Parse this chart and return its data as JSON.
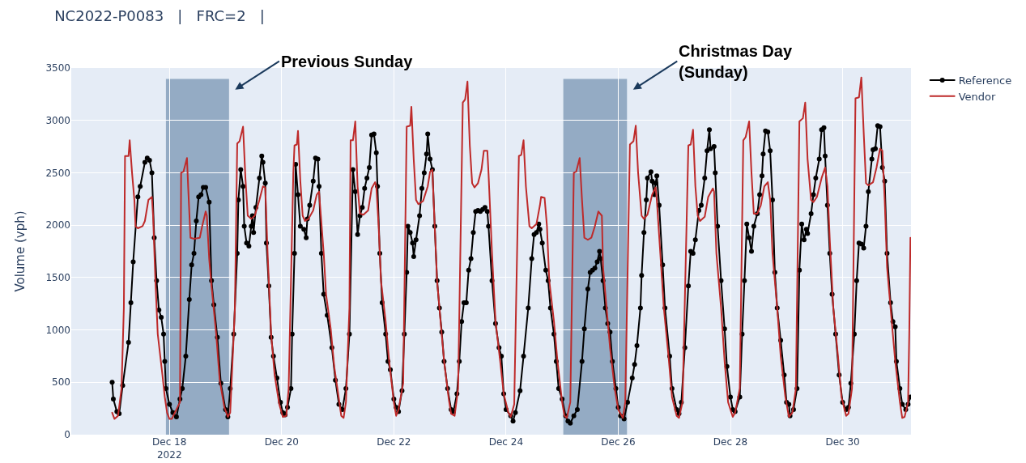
{
  "chart_data": {
    "type": "line",
    "title": "NC2022-P0083   |   FRC=2   |",
    "ylabel": "Volume (vph)",
    "xlim": [
      "2022-12-16T06:00",
      "2022-12-31T05:15"
    ],
    "xticks": [
      {
        "value": "2022-12-18",
        "label": "Dec 18\n2022"
      },
      {
        "value": "2022-12-20",
        "label": "Dec 20"
      },
      {
        "value": "2022-12-22",
        "label": "Dec 22"
      },
      {
        "value": "2022-12-24",
        "label": "Dec 24"
      },
      {
        "value": "2022-12-26",
        "label": "Dec 26"
      },
      {
        "value": "2022-12-28",
        "label": "Dec 28"
      },
      {
        "value": "2022-12-30",
        "label": "Dec 30"
      }
    ],
    "ylim": [
      0,
      3500
    ],
    "yticks": [
      0,
      500,
      1000,
      1500,
      2000,
      2500,
      3000,
      3500
    ],
    "grid": true,
    "legend": "top right",
    "bands": [
      {
        "axis": "x",
        "from": "2022-12-17T22:30",
        "to": "2022-12-19T01:30",
        "color": "#94abc4",
        "label": "Previous Sunday"
      },
      {
        "axis": "x",
        "from": "2022-12-25T00:30",
        "to": "2022-12-26T03:45",
        "color": "#94abc4",
        "label": "Christmas Day\n(Sunday)"
      }
    ],
    "series": [
      {
        "name": "Reference",
        "color": "#000000",
        "marker": "circle",
        "x": [
          "2022-12-16T23:30",
          "2022-12-17T00:00",
          "2022-12-17T01:30",
          "2022-12-17T02:30",
          "2022-12-17T04:00",
          "2022-12-17T06:30",
          "2022-12-17T07:30",
          "2022-12-17T08:30",
          "2022-12-17T10:30",
          "2022-12-17T11:30",
          "2022-12-17T13:30",
          "2022-12-17T14:30",
          "2022-12-17T15:30",
          "2022-12-17T16:30",
          "2022-12-17T17:30",
          "2022-12-17T18:30",
          "2022-12-17T19:30",
          "2022-12-17T20:30",
          "2022-12-17T21:30",
          "2022-12-17T22:00",
          "2022-12-17T22:30",
          "2022-12-18T00:00",
          "2022-12-18T01:30",
          "2022-12-18T03:00",
          "2022-12-18T04:30",
          "2022-12-18T05:30",
          "2022-12-18T07:00",
          "2022-12-18T08:30",
          "2022-12-18T09:30",
          "2022-12-18T10:30",
          "2022-12-18T11:30",
          "2022-12-18T12:30",
          "2022-12-18T13:30",
          "2022-12-18T14:30",
          "2022-12-18T15:30",
          "2022-12-18T17:00",
          "2022-12-18T18:00",
          "2022-12-18T19:00",
          "2022-12-18T20:30",
          "2022-12-18T22:00",
          "2022-12-19T00:00",
          "2022-12-19T01:00",
          "2022-12-19T02:00",
          "2022-12-19T03:30",
          "2022-12-19T05:00",
          "2022-12-19T05:30",
          "2022-12-19T06:30",
          "2022-12-19T07:30",
          "2022-12-19T08:00",
          "2022-12-19T09:00",
          "2022-12-19T10:00",
          "2022-12-19T11:00",
          "2022-12-19T11:30",
          "2022-12-19T12:00",
          "2022-12-19T13:00",
          "2022-12-19T14:30",
          "2022-12-19T15:30",
          "2022-12-19T16:00",
          "2022-12-19T17:00",
          "2022-12-19T17:30",
          "2022-12-19T18:30",
          "2022-12-19T19:30",
          "2022-12-19T20:30",
          "2022-12-19T22:00",
          "2022-12-19T23:30",
          "2022-12-20T00:30",
          "2022-12-20T01:30",
          "2022-12-20T02:30",
          "2022-12-20T04:00",
          "2022-12-20T04:30",
          "2022-12-20T05:30",
          "2022-12-20T06:00",
          "2022-12-20T07:00",
          "2022-12-20T08:00",
          "2022-12-20T09:30",
          "2022-12-20T10:30",
          "2022-12-20T11:00",
          "2022-12-20T12:00",
          "2022-12-20T13:30",
          "2022-12-20T14:30",
          "2022-12-20T15:30",
          "2022-12-20T16:00",
          "2022-12-20T17:00",
          "2022-12-20T18:00",
          "2022-12-20T19:30",
          "2022-12-20T21:30",
          "2022-12-20T23:00",
          "2022-12-21T00:30",
          "2022-12-21T02:00",
          "2022-12-21T03:30",
          "2022-12-21T05:00",
          "2022-12-21T06:30",
          "2022-12-21T07:30",
          "2022-12-21T08:30",
          "2022-12-21T09:30",
          "2022-12-21T10:30",
          "2022-12-21T11:30",
          "2022-12-21T12:30",
          "2022-12-21T13:30",
          "2022-12-21T14:30",
          "2022-12-21T15:30",
          "2022-12-21T16:30",
          "2022-12-21T17:00",
          "2022-12-21T18:00",
          "2022-12-21T19:00",
          "2022-12-21T20:30",
          "2022-12-21T21:30",
          "2022-12-21T22:30",
          "2022-12-22T00:00",
          "2022-12-22T01:00",
          "2022-12-22T02:00",
          "2022-12-22T03:30",
          "2022-12-22T04:30",
          "2022-12-22T05:30",
          "2022-12-22T06:00",
          "2022-12-22T07:00",
          "2022-12-22T08:00",
          "2022-12-22T08:30",
          "2022-12-22T09:30",
          "2022-12-22T11:00",
          "2022-12-22T12:00",
          "2022-12-22T13:00",
          "2022-12-22T14:00",
          "2022-12-22T14:30",
          "2022-12-22T15:30",
          "2022-12-22T16:30",
          "2022-12-22T17:30",
          "2022-12-22T18:30",
          "2022-12-22T19:30",
          "2022-12-22T20:30",
          "2022-12-22T21:30",
          "2022-12-22T23:00",
          "2022-12-23T00:30",
          "2022-12-23T01:30",
          "2022-12-23T03:00",
          "2022-12-23T04:00",
          "2022-12-23T05:00",
          "2022-12-23T06:00",
          "2022-12-23T07:00",
          "2022-12-23T08:00",
          "2022-12-23T09:00",
          "2022-12-23T10:00",
          "2022-12-23T11:00",
          "2022-12-23T12:00",
          "2022-12-23T13:00",
          "2022-12-23T14:00",
          "2022-12-23T15:00",
          "2022-12-23T16:00",
          "2022-12-23T16:30",
          "2022-12-23T18:00",
          "2022-12-23T19:30",
          "2022-12-23T21:00",
          "2022-12-23T22:00",
          "2022-12-23T23:00",
          "2022-12-24T00:00",
          "2022-12-24T02:00",
          "2022-12-24T03:00",
          "2022-12-24T04:00",
          "2022-12-24T06:00",
          "2022-12-24T07:30",
          "2022-12-24T09:30",
          "2022-12-24T11:00",
          "2022-12-24T12:00",
          "2022-12-24T13:00",
          "2022-12-24T14:00",
          "2022-12-24T14:30",
          "2022-12-24T15:30",
          "2022-12-24T17:00",
          "2022-12-24T18:00",
          "2022-12-24T19:00",
          "2022-12-24T20:30",
          "2022-12-24T21:30",
          "2022-12-24T22:30",
          "2022-12-25T00:00",
          "2022-12-25T01:30",
          "2022-12-25T02:30",
          "2022-12-25T03:30",
          "2022-12-25T05:00",
          "2022-12-25T06:30",
          "2022-12-25T08:30",
          "2022-12-25T09:30",
          "2022-12-25T11:00",
          "2022-12-25T12:00",
          "2022-12-25T13:00",
          "2022-12-25T14:00",
          "2022-12-25T15:00",
          "2022-12-25T16:00",
          "2022-12-25T16:30",
          "2022-12-25T17:30",
          "2022-12-25T18:30",
          "2022-12-25T19:30",
          "2022-12-25T20:30",
          "2022-12-25T21:30",
          "2022-12-25T23:00",
          "2022-12-26T00:00",
          "2022-12-26T01:00",
          "2022-12-26T02:30",
          "2022-12-26T04:00",
          "2022-12-26T06:00",
          "2022-12-26T07:00",
          "2022-12-26T08:00",
          "2022-12-26T09:30",
          "2022-12-26T10:00",
          "2022-12-26T11:00",
          "2022-12-26T12:00",
          "2022-12-26T12:30",
          "2022-12-26T14:00",
          "2022-12-26T14:30",
          "2022-12-26T15:30",
          "2022-12-26T16:00",
          "2022-12-26T16:30",
          "2022-12-26T17:30",
          "2022-12-26T19:00",
          "2022-12-26T20:00",
          "2022-12-26T22:00",
          "2022-12-26T23:00",
          "2022-12-27T01:00",
          "2022-12-27T02:00",
          "2022-12-27T03:00",
          "2022-12-27T04:30",
          "2022-12-27T06:00",
          "2022-12-27T07:00",
          "2022-12-27T08:00",
          "2022-12-27T09:00",
          "2022-12-27T10:30",
          "2022-12-27T11:30",
          "2022-12-27T13:00",
          "2022-12-27T14:00",
          "2022-12-27T15:00",
          "2022-12-27T15:30",
          "2022-12-27T17:00",
          "2022-12-27T17:30",
          "2022-12-27T18:30",
          "2022-12-27T20:00",
          "2022-12-27T21:30",
          "2022-12-27T22:30",
          "2022-12-28T00:00",
          "2022-12-28T01:00",
          "2022-12-28T02:00",
          "2022-12-28T04:00",
          "2022-12-28T05:00",
          "2022-12-28T06:00",
          "2022-12-28T07:00",
          "2022-12-28T08:00",
          "2022-12-28T09:00",
          "2022-12-28T10:00",
          "2022-12-28T11:30",
          "2022-12-28T12:30",
          "2022-12-28T13:30",
          "2022-12-28T14:00",
          "2022-12-28T15:00",
          "2022-12-28T16:00",
          "2022-12-28T17:00",
          "2022-12-28T18:00",
          "2022-12-28T19:00",
          "2022-12-28T20:00",
          "2022-12-28T21:30",
          "2022-12-28T23:00",
          "2022-12-29T00:00",
          "2022-12-29T01:00",
          "2022-12-29T01:30",
          "2022-12-29T03:00",
          "2022-12-29T04:30",
          "2022-12-29T05:30",
          "2022-12-29T06:30",
          "2022-12-29T07:30",
          "2022-12-29T08:30",
          "2022-12-29T09:00",
          "2022-12-29T10:30",
          "2022-12-29T11:30",
          "2022-12-29T12:30",
          "2022-12-29T14:00",
          "2022-12-29T15:00",
          "2022-12-29T16:00",
          "2022-12-29T16:30",
          "2022-12-29T17:30",
          "2022-12-29T18:30",
          "2022-12-29T19:30",
          "2022-12-29T21:00",
          "2022-12-29T22:30",
          "2022-12-30T00:00",
          "2022-12-30T01:30",
          "2022-12-30T02:30",
          "2022-12-30T03:30",
          "2022-12-30T05:00",
          "2022-12-30T06:00",
          "2022-12-30T07:00",
          "2022-12-30T08:00",
          "2022-12-30T09:00",
          "2022-12-30T10:00",
          "2022-12-30T11:00",
          "2022-12-30T12:30",
          "2022-12-30T13:00",
          "2022-12-30T14:00",
          "2022-12-30T15:00",
          "2022-12-30T16:00",
          "2022-12-30T17:00",
          "2022-12-30T18:00",
          "2022-12-30T19:00",
          "2022-12-30T20:30",
          "2022-12-30T21:30",
          "2022-12-30T22:30",
          "2022-12-30T23:00",
          "2022-12-31T00:30",
          "2022-12-31T01:30",
          "2022-12-31T03:00",
          "2022-12-31T04:00",
          "2022-12-31T05:00"
        ],
        "values": [
          500,
          340,
          220,
          200,
          470,
          880,
          1260,
          1650,
          2270,
          2370,
          2600,
          2640,
          2620,
          2500,
          1880,
          1470,
          1190,
          1120,
          960,
          700,
          440,
          290,
          210,
          170,
          340,
          440,
          750,
          1290,
          1620,
          1730,
          2040,
          2270,
          2290,
          2360,
          2360,
          2220,
          1470,
          1240,
          930,
          490,
          240,
          170,
          440,
          960,
          1730,
          2240,
          2530,
          2370,
          1990,
          1830,
          1800,
          1990,
          2090,
          1930,
          2170,
          2450,
          2660,
          2600,
          2400,
          1830,
          1420,
          930,
          750,
          540,
          310,
          210,
          190,
          260,
          440,
          960,
          1730,
          2580,
          2290,
          1990,
          1960,
          1880,
          2060,
          2190,
          2420,
          2640,
          2630,
          2370,
          1730,
          1340,
          1140,
          830,
          520,
          290,
          240,
          440,
          960,
          2530,
          2320,
          1910,
          2090,
          2170,
          2350,
          2450,
          2550,
          2860,
          2870,
          2690,
          2370,
          1730,
          1260,
          960,
          700,
          620,
          340,
          260,
          220,
          420,
          960,
          1550,
          1990,
          1930,
          1830,
          1700,
          1860,
          2090,
          2350,
          2500,
          2680,
          2870,
          2630,
          2530,
          1990,
          1470,
          1210,
          980,
          700,
          440,
          240,
          220,
          390,
          700,
          1080,
          1260,
          1260,
          1570,
          1680,
          1930,
          2130,
          2140,
          2130,
          2150,
          2170,
          2130,
          1990,
          1470,
          1060,
          830,
          750,
          390,
          240,
          180,
          130,
          210,
          420,
          750,
          1210,
          1680,
          1910,
          1930,
          2010,
          1960,
          1830,
          1570,
          1470,
          1210,
          960,
          700,
          440,
          340,
          180,
          130,
          110,
          180,
          240,
          700,
          1010,
          1390,
          1550,
          1570,
          1590,
          1650,
          1750,
          1680,
          1470,
          1210,
          1060,
          980,
          700,
          440,
          260,
          180,
          150,
          310,
          540,
          670,
          850,
          1210,
          1520,
          1930,
          2240,
          2450,
          2510,
          2420,
          2290,
          2400,
          2470,
          2190,
          1620,
          1210,
          750,
          440,
          240,
          200,
          310,
          830,
          1420,
          1750,
          1730,
          1860,
          2140,
          2190,
          2450,
          2710,
          2910,
          2730,
          2750,
          2500,
          1990,
          1470,
          1010,
          650,
          360,
          240,
          220,
          360,
          960,
          1470,
          2010,
          1880,
          1750,
          1990,
          2110,
          2290,
          2470,
          2680,
          2900,
          2890,
          2710,
          2240,
          1550,
          1210,
          900,
          570,
          310,
          290,
          180,
          240,
          440,
          1570,
          2010,
          1860,
          1960,
          1920,
          2110,
          2290,
          2450,
          2630,
          2910,
          2930,
          2660,
          2190,
          1730,
          1340,
          960,
          570,
          310,
          240,
          260,
          490,
          960,
          1470,
          1830,
          1820,
          1780,
          1990,
          2320,
          2630,
          2720,
          2730,
          2950,
          2940,
          2550,
          2420,
          1730,
          1260,
          1080,
          1030,
          700,
          440,
          290,
          240,
          290,
          360
        ]
      },
      {
        "name": "Vendor",
        "color": "#be2a2a",
        "x": [
          "2022-12-16T23:30",
          "2022-12-17T00:30",
          "2022-12-17T02:00",
          "2022-12-17T03:30",
          "2022-12-17T04:30",
          "2022-12-17T05:00",
          "2022-12-17T06:30",
          "2022-12-17T07:00",
          "2022-12-17T08:00",
          "2022-12-17T09:00",
          "2022-12-17T09:30",
          "2022-12-17T10:30",
          "2022-12-17T12:30",
          "2022-12-17T13:30",
          "2022-12-17T15:00",
          "2022-12-17T16:30",
          "2022-12-17T17:00",
          "2022-12-17T18:00",
          "2022-12-17T19:00",
          "2022-12-17T21:00",
          "2022-12-17T22:00",
          "2022-12-17T23:00",
          "2022-12-18T00:00",
          "2022-12-18T01:00",
          "2022-12-18T04:30",
          "2022-12-18T05:00",
          "2022-12-18T06:00",
          "2022-12-18T07:30",
          "2022-12-18T08:00",
          "2022-12-18T09:00",
          "2022-12-18T10:30",
          "2022-12-18T13:00",
          "2022-12-18T14:00",
          "2022-12-18T15:30",
          "2022-12-18T16:00",
          "2022-12-18T17:00",
          "2022-12-18T18:00",
          "2022-12-18T20:00",
          "2022-12-18T21:30",
          "2022-12-18T23:30",
          "2022-12-19T01:00",
          "2022-12-19T02:00",
          "2022-12-19T04:00",
          "2022-12-19T05:00",
          "2022-12-19T06:00",
          "2022-12-19T07:30",
          "2022-12-19T08:30",
          "2022-12-19T09:30",
          "2022-12-19T11:00",
          "2022-12-19T12:30",
          "2022-12-19T14:30",
          "2022-12-19T16:00",
          "2022-12-19T17:00",
          "2022-12-19T18:00",
          "2022-12-19T19:30",
          "2022-12-19T21:00",
          "2022-12-19T23:00",
          "2022-12-20T00:30",
          "2022-12-20T02:00",
          "2022-12-20T03:00",
          "2022-12-20T04:00",
          "2022-12-20T05:00",
          "2022-12-20T05:30",
          "2022-12-20T06:30",
          "2022-12-20T07:00",
          "2022-12-20T08:00",
          "2022-12-20T09:00",
          "2022-12-20T10:00",
          "2022-12-20T11:30",
          "2022-12-20T13:30",
          "2022-12-20T15:00",
          "2022-12-20T16:00",
          "2022-12-20T18:00",
          "2022-12-20T19:00",
          "2022-12-20T21:00",
          "2022-12-20T22:30",
          "2022-12-21T00:30",
          "2022-12-21T01:30",
          "2022-12-21T02:30",
          "2022-12-21T03:30",
          "2022-12-21T05:00",
          "2022-12-21T05:30",
          "2022-12-21T06:30",
          "2022-12-21T07:30",
          "2022-12-21T08:30",
          "2022-12-21T09:30",
          "2022-12-21T11:00",
          "2022-12-21T13:00",
          "2022-12-21T14:30",
          "2022-12-21T16:00",
          "2022-12-21T16:30",
          "2022-12-21T17:30",
          "2022-12-21T18:30",
          "2022-12-21T20:30",
          "2022-12-21T22:00",
          "2022-12-22T00:00",
          "2022-12-22T01:00",
          "2022-12-22T02:00",
          "2022-12-22T04:00",
          "2022-12-22T05:30",
          "2022-12-22T07:00",
          "2022-12-22T07:30",
          "2022-12-22T08:30",
          "2022-12-22T09:30",
          "2022-12-22T10:30",
          "2022-12-22T12:30",
          "2022-12-22T14:30",
          "2022-12-22T15:30",
          "2022-12-22T16:30",
          "2022-12-22T17:00",
          "2022-12-22T18:30",
          "2022-12-22T20:00",
          "2022-12-22T21:30",
          "2022-12-22T23:30",
          "2022-12-23T00:30",
          "2022-12-23T02:00",
          "2022-12-23T03:30",
          "2022-12-23T05:30",
          "2022-12-23T06:30",
          "2022-12-23T07:30",
          "2022-12-23T08:30",
          "2022-12-23T09:30",
          "2022-12-23T10:30",
          "2022-12-23T12:00",
          "2022-12-23T13:30",
          "2022-12-23T14:30",
          "2022-12-23T16:00",
          "2022-12-23T16:30",
          "2022-12-23T18:00",
          "2022-12-23T19:30",
          "2022-12-23T21:30",
          "2022-12-23T23:00",
          "2022-12-24T01:00",
          "2022-12-24T02:00",
          "2022-12-24T03:30",
          "2022-12-24T05:30",
          "2022-12-24T06:30",
          "2022-12-24T07:30",
          "2022-12-24T08:30",
          "2022-12-24T10:00",
          "2022-12-24T11:00",
          "2022-12-24T13:00",
          "2022-12-24T14:30",
          "2022-12-24T15:00",
          "2022-12-24T16:30",
          "2022-12-24T17:30",
          "2022-12-24T18:30",
          "2022-12-24T20:30",
          "2022-12-24T22:00",
          "2022-12-25T00:00",
          "2022-12-25T01:00",
          "2022-12-25T02:00",
          "2022-12-25T03:30",
          "2022-12-25T05:00",
          "2022-12-25T06:00",
          "2022-12-25T07:30",
          "2022-12-25T08:30",
          "2022-12-25T09:30",
          "2022-12-25T11:00",
          "2022-12-25T12:30",
          "2022-12-25T14:00",
          "2022-12-25T15:30",
          "2022-12-25T17:00",
          "2022-12-25T17:30",
          "2022-12-25T19:00",
          "2022-12-25T20:30",
          "2022-12-25T22:30",
          "2022-12-26T00:00",
          "2022-12-26T02:00",
          "2022-12-26T03:00",
          "2022-12-26T05:00",
          "2022-12-26T06:30",
          "2022-12-26T07:30",
          "2022-12-26T08:30",
          "2022-12-26T10:00",
          "2022-12-26T11:00",
          "2022-12-26T12:30",
          "2022-12-26T14:30",
          "2022-12-26T16:00",
          "2022-12-26T16:30",
          "2022-12-26T18:00",
          "2022-12-26T19:30",
          "2022-12-26T21:30",
          "2022-12-26T23:00",
          "2022-12-27T01:00",
          "2022-12-27T02:00",
          "2022-12-27T03:30",
          "2022-12-27T06:00",
          "2022-12-27T07:00",
          "2022-12-27T08:00",
          "2022-12-27T09:00",
          "2022-12-27T10:00",
          "2022-12-27T11:00",
          "2022-12-27T13:00",
          "2022-12-27T14:30",
          "2022-12-27T16:30",
          "2022-12-27T17:00",
          "2022-12-27T18:00",
          "2022-12-27T20:00",
          "2022-12-27T21:30",
          "2022-12-27T23:00",
          "2022-12-28T01:00",
          "2022-12-28T02:00",
          "2022-12-28T04:00",
          "2022-12-28T05:30",
          "2022-12-28T06:30",
          "2022-12-28T08:00",
          "2022-12-28T09:00",
          "2022-12-28T10:00",
          "2022-12-28T11:30",
          "2022-12-28T13:00",
          "2022-12-28T14:30",
          "2022-12-28T16:00",
          "2022-12-28T17:00",
          "2022-12-28T18:00",
          "2022-12-28T20:00",
          "2022-12-28T21:30",
          "2022-12-28T23:30",
          "2022-12-29T01:00",
          "2022-12-29T02:30",
          "2022-12-29T04:00",
          "2022-12-29T05:30",
          "2022-12-29T07:00",
          "2022-12-29T08:00",
          "2022-12-29T09:00",
          "2022-12-29T10:30",
          "2022-12-29T11:30",
          "2022-12-29T13:00",
          "2022-12-29T15:00",
          "2022-12-29T16:30",
          "2022-12-29T17:30",
          "2022-12-29T18:30",
          "2022-12-29T20:00",
          "2022-12-29T22:00",
          "2022-12-29T23:30",
          "2022-12-30T01:30",
          "2022-12-30T02:30",
          "2022-12-30T04:00",
          "2022-12-30T05:30",
          "2022-12-30T07:00",
          "2022-12-30T08:00",
          "2022-12-30T09:00",
          "2022-12-30T10:00",
          "2022-12-30T11:00",
          "2022-12-30T13:00",
          "2022-12-30T14:30",
          "2022-12-30T16:00",
          "2022-12-30T17:00",
          "2022-12-30T18:00",
          "2022-12-30T19:00",
          "2022-12-30T21:00",
          "2022-12-30T22:30",
          "2022-12-31T00:30",
          "2022-12-31T01:30",
          "2022-12-31T02:30",
          "2022-12-31T04:00",
          "2022-12-31T04:30",
          "2022-12-31T05:00"
        ],
        "values": [
          210,
          150,
          180,
          440,
          1210,
          2660,
          2660,
          2810,
          2500,
          2240,
          1990,
          1970,
          1990,
          2040,
          2240,
          2270,
          2090,
          1470,
          960,
          570,
          360,
          210,
          150,
          150,
          310,
          2500,
          2510,
          2640,
          2370,
          1880,
          1870,
          1880,
          1990,
          2130,
          2090,
          1680,
          1420,
          960,
          520,
          260,
          170,
          210,
          1200,
          2780,
          2800,
          2940,
          2450,
          2090,
          2060,
          2090,
          2240,
          2370,
          2360,
          1730,
          960,
          570,
          290,
          170,
          180,
          440,
          1470,
          2500,
          2760,
          2770,
          2900,
          2420,
          2090,
          2040,
          2060,
          2140,
          2290,
          2320,
          1730,
          1340,
          1010,
          650,
          340,
          180,
          160,
          310,
          1210,
          2810,
          2810,
          2990,
          2370,
          2110,
          2100,
          2140,
          2350,
          2410,
          2370,
          1990,
          1470,
          1080,
          700,
          310,
          180,
          240,
          490,
          2940,
          2950,
          3130,
          2630,
          2240,
          2200,
          2230,
          2370,
          2510,
          2530,
          2240,
          1470,
          1080,
          700,
          340,
          200,
          180,
          440,
          3170,
          3200,
          3370,
          2760,
          2400,
          2360,
          2400,
          2530,
          2710,
          2710,
          2500,
          1730,
          1080,
          700,
          390,
          210,
          170,
          290,
          2660,
          2670,
          2810,
          2370,
          1990,
          1970,
          2010,
          2190,
          2270,
          2260,
          1990,
          1470,
          1080,
          700,
          310,
          180,
          160,
          310,
          2500,
          2510,
          2640,
          2240,
          1880,
          1860,
          1880,
          1990,
          2130,
          2090,
          1600,
          1210,
          830,
          440,
          240,
          160,
          310,
          2770,
          2800,
          2950,
          2500,
          2090,
          2060,
          2100,
          2290,
          2360,
          2240,
          1730,
          1210,
          750,
          360,
          180,
          160,
          310,
          2760,
          2770,
          2910,
          2370,
          2090,
          2040,
          2080,
          2270,
          2350,
          2320,
          1730,
          1210,
          700,
          310,
          170,
          210,
          440,
          2810,
          2840,
          2990,
          2500,
          2110,
          2110,
          2190,
          2370,
          2410,
          2240,
          1730,
          1210,
          750,
          360,
          170,
          210,
          440,
          2990,
          3020,
          3170,
          2630,
          2240,
          2220,
          2270,
          2450,
          2550,
          2370,
          1860,
          1210,
          750,
          360,
          180,
          200,
          440,
          3210,
          3220,
          3410,
          2890,
          2400,
          2380,
          2410,
          2550,
          2730,
          2710,
          2240,
          1600,
          1080,
          700,
          310,
          160,
          170,
          310,
          960,
          1880
        ]
      }
    ]
  }
}
